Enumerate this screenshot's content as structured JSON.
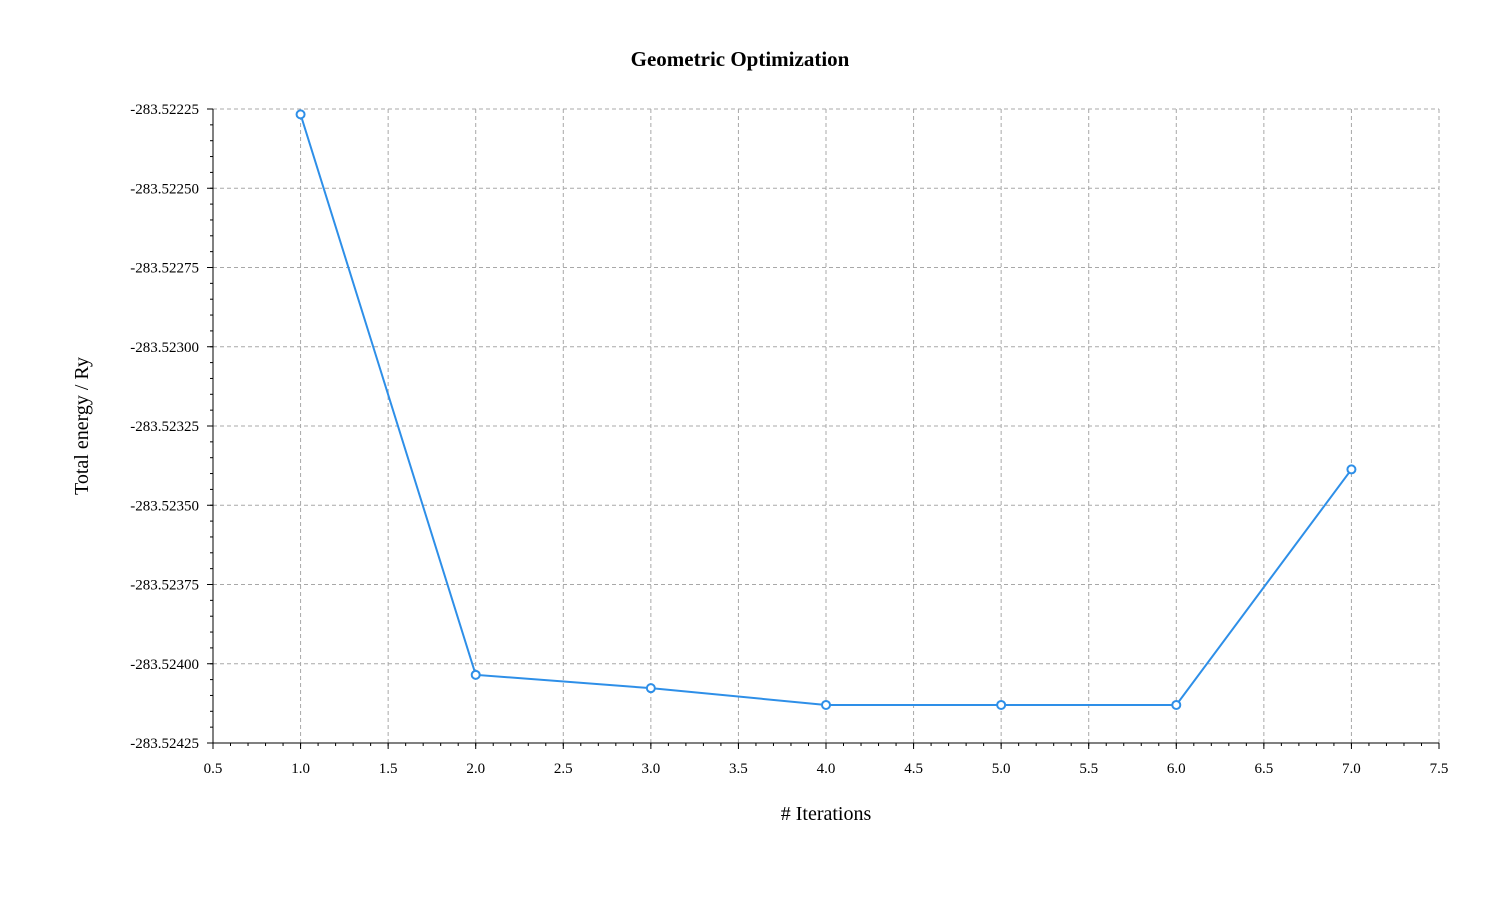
{
  "chart_data": {
    "type": "line",
    "title": "Geometric Optimization",
    "xlabel": "# Iterations",
    "ylabel": "Total energy / Ry",
    "xlim": [
      0.5,
      7.5
    ],
    "ylim": [
      -283.52425,
      -283.52225
    ],
    "x_ticks": [
      "0.5",
      "1.0",
      "1.5",
      "2.0",
      "2.5",
      "3.0",
      "3.5",
      "4.0",
      "4.5",
      "5.0",
      "5.5",
      "6.0",
      "6.5",
      "7.0",
      "7.5"
    ],
    "y_ticks": [
      "-283.52225",
      "-283.52250",
      "-283.52275",
      "-283.52300",
      "-283.52325",
      "-283.52350",
      "-283.52375",
      "-283.52400",
      "-283.52425"
    ],
    "grid": true,
    "color": "#2e8fe8",
    "series": [
      {
        "x": [
          1,
          2,
          3,
          4,
          5,
          6,
          7
        ],
        "values": [
          -283.522267,
          -283.524035,
          -283.524077,
          -283.52413,
          -283.52413,
          -283.52413,
          -283.523387
        ]
      }
    ]
  }
}
